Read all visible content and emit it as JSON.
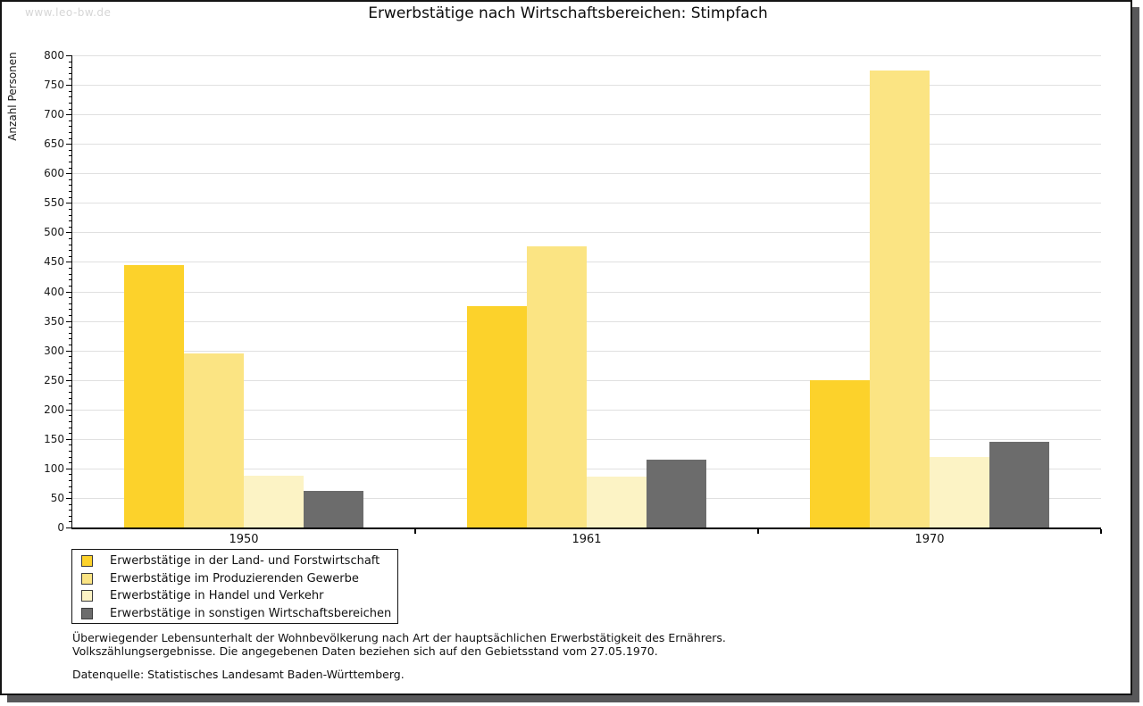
{
  "watermark": "www.leo-bw.de",
  "header": {
    "title": "Erwerbstätige nach Wirtschaftsbereichen: Stimpfach"
  },
  "chart_data": {
    "type": "bar",
    "title": "Erwerbstätige nach Wirtschaftsbereichen: Stimpfach",
    "xlabel": "",
    "ylabel": "Anzahl Personen",
    "categories": [
      "1950",
      "1961",
      "1970"
    ],
    "series": [
      {
        "name": "Erwerbstätige in der Land- und Forstwirtschaft",
        "color": "#FCD22B",
        "values": [
          445,
          375,
          250
        ]
      },
      {
        "name": "Erwerbstätige im Produzierenden Gewerbe",
        "color": "#FBE483",
        "values": [
          295,
          477,
          775
        ]
      },
      {
        "name": "Erwerbstätige in Handel und Verkehr",
        "color": "#FCF3C5",
        "values": [
          88,
          86,
          120
        ]
      },
      {
        "name": "Erwerbstätige in sonstigen Wirtschaftsbereichen",
        "color": "#6C6C6C",
        "values": [
          62,
          115,
          145
        ]
      }
    ],
    "ylim": [
      0,
      800
    ],
    "ytick_major": 50,
    "ytick_minor": 10,
    "grid": true,
    "legend_position": "bottom-left"
  },
  "colors": {
    "grid": "#e0e0e0",
    "axis": "#000000",
    "frame_shadow": "#58585a",
    "watermark": "#d6d6d6"
  },
  "footnotes": {
    "lines": [
      "Überwiegender Lebensunterhalt der Wohnbevölkerung nach Art der hauptsächlichen Erwerbstätigkeit des Ernährers.",
      "Volkszählungsergebnisse. Die angegebenen Daten beziehen sich auf den Gebietsstand vom 27.05.1970."
    ],
    "source": "Datenquelle: Statistisches Landesamt Baden-Württemberg."
  }
}
